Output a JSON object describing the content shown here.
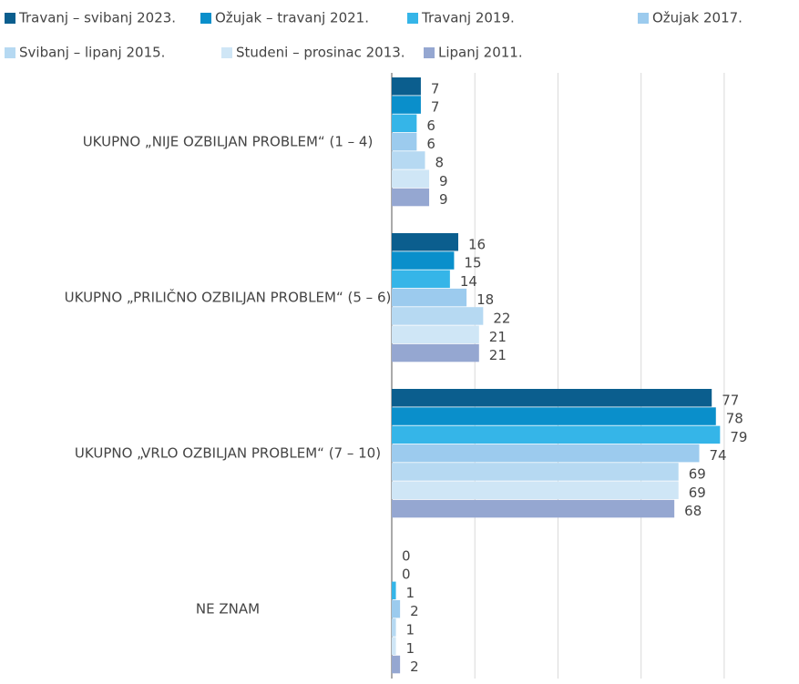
{
  "chart_data": {
    "type": "barh",
    "categories": [
      "UKUPNO „NIJE OZBILJAN PROBLEM“ (1 – 4)",
      "UKUPNO „PRILIČNO OZBILJAN PROBLEM“ (5 – 6)",
      "UKUPNO „VRLO OZBILJAN PROBLEM“ (7 – 10)",
      "NE ZNAM"
    ],
    "series": [
      {
        "name": "Travanj – svibanj 2023.",
        "color": "#0b5e8e",
        "values": [
          7,
          16,
          77,
          0
        ]
      },
      {
        "name": "Ožujak – travanj 2021.",
        "color": "#0a8fcb",
        "values": [
          7,
          15,
          78,
          0
        ]
      },
      {
        "name": "Travanj 2019.",
        "color": "#35b5e8",
        "values": [
          6,
          14,
          79,
          1
        ]
      },
      {
        "name": "Ožujak 2017.",
        "color": "#9ccbee",
        "values": [
          6,
          18,
          74,
          2
        ]
      },
      {
        "name": "Svibanj – lipanj 2015.",
        "color": "#b6d9f2",
        "values": [
          8,
          22,
          69,
          1
        ]
      },
      {
        "name": "Studeni – prosinac 2013.",
        "color": "#cfe6f6",
        "values": [
          9,
          21,
          69,
          1
        ]
      },
      {
        "name": "Lipanj 2011.",
        "color": "#95a7d1",
        "values": [
          9,
          21,
          68,
          2
        ]
      }
    ],
    "xlim": [
      0,
      98
    ],
    "xticks": [
      0,
      20,
      40,
      60,
      80
    ],
    "grid": true,
    "legend": "top"
  }
}
